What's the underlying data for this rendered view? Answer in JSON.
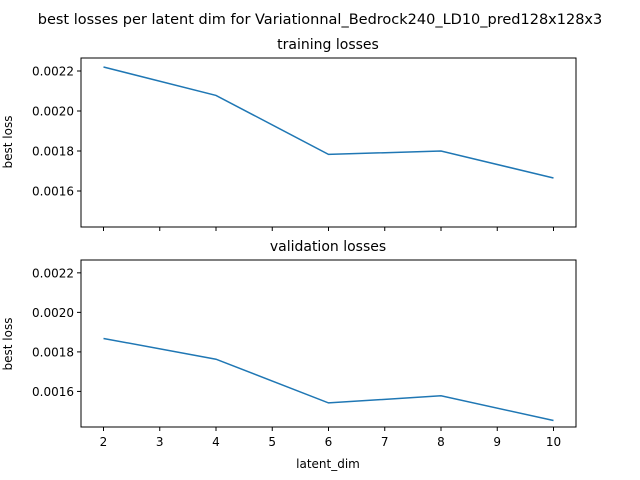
{
  "figure": {
    "suptitle": "best losses per latent dim for Variationnal_Bedrock240_LD10_pred128x128x3"
  },
  "chart_data": [
    {
      "type": "line",
      "title": "training losses",
      "xlabel": "",
      "ylabel": "best loss",
      "x": [
        2,
        4,
        6,
        8,
        10
      ],
      "series": [
        {
          "values": [
            0.00222,
            0.002078,
            0.001783,
            0.0018,
            0.001665
          ]
        }
      ],
      "xlim": [
        1.6,
        10.4
      ],
      "ylim": [
        0.00142,
        0.002265
      ],
      "xticks": [
        2,
        3,
        4,
        5,
        6,
        7,
        8,
        9,
        10
      ],
      "yticks": [
        0.0016,
        0.0018,
        0.002,
        0.0022
      ],
      "ytick_labels": [
        "0.0016",
        "0.0018",
        "0.0020",
        "0.0022"
      ],
      "show_xtick_labels": false,
      "grid": false,
      "color": "#1f77b4"
    },
    {
      "type": "line",
      "title": "validation losses",
      "xlabel": "latent_dim",
      "ylabel": "best loss",
      "x": [
        2,
        4,
        6,
        8,
        10
      ],
      "series": [
        {
          "values": [
            0.001868,
            0.001763,
            0.001542,
            0.001578,
            0.001453
          ]
        }
      ],
      "xlim": [
        1.6,
        10.4
      ],
      "ylim": [
        0.00142,
        0.002265
      ],
      "xticks": [
        2,
        3,
        4,
        5,
        6,
        7,
        8,
        9,
        10
      ],
      "xtick_labels": [
        "2",
        "3",
        "4",
        "5",
        "6",
        "7",
        "8",
        "9",
        "10"
      ],
      "yticks": [
        0.0016,
        0.0018,
        0.002,
        0.0022
      ],
      "ytick_labels": [
        "0.0016",
        "0.0018",
        "0.0020",
        "0.0022"
      ],
      "show_xtick_labels": true,
      "grid": false,
      "color": "#1f77b4"
    }
  ]
}
